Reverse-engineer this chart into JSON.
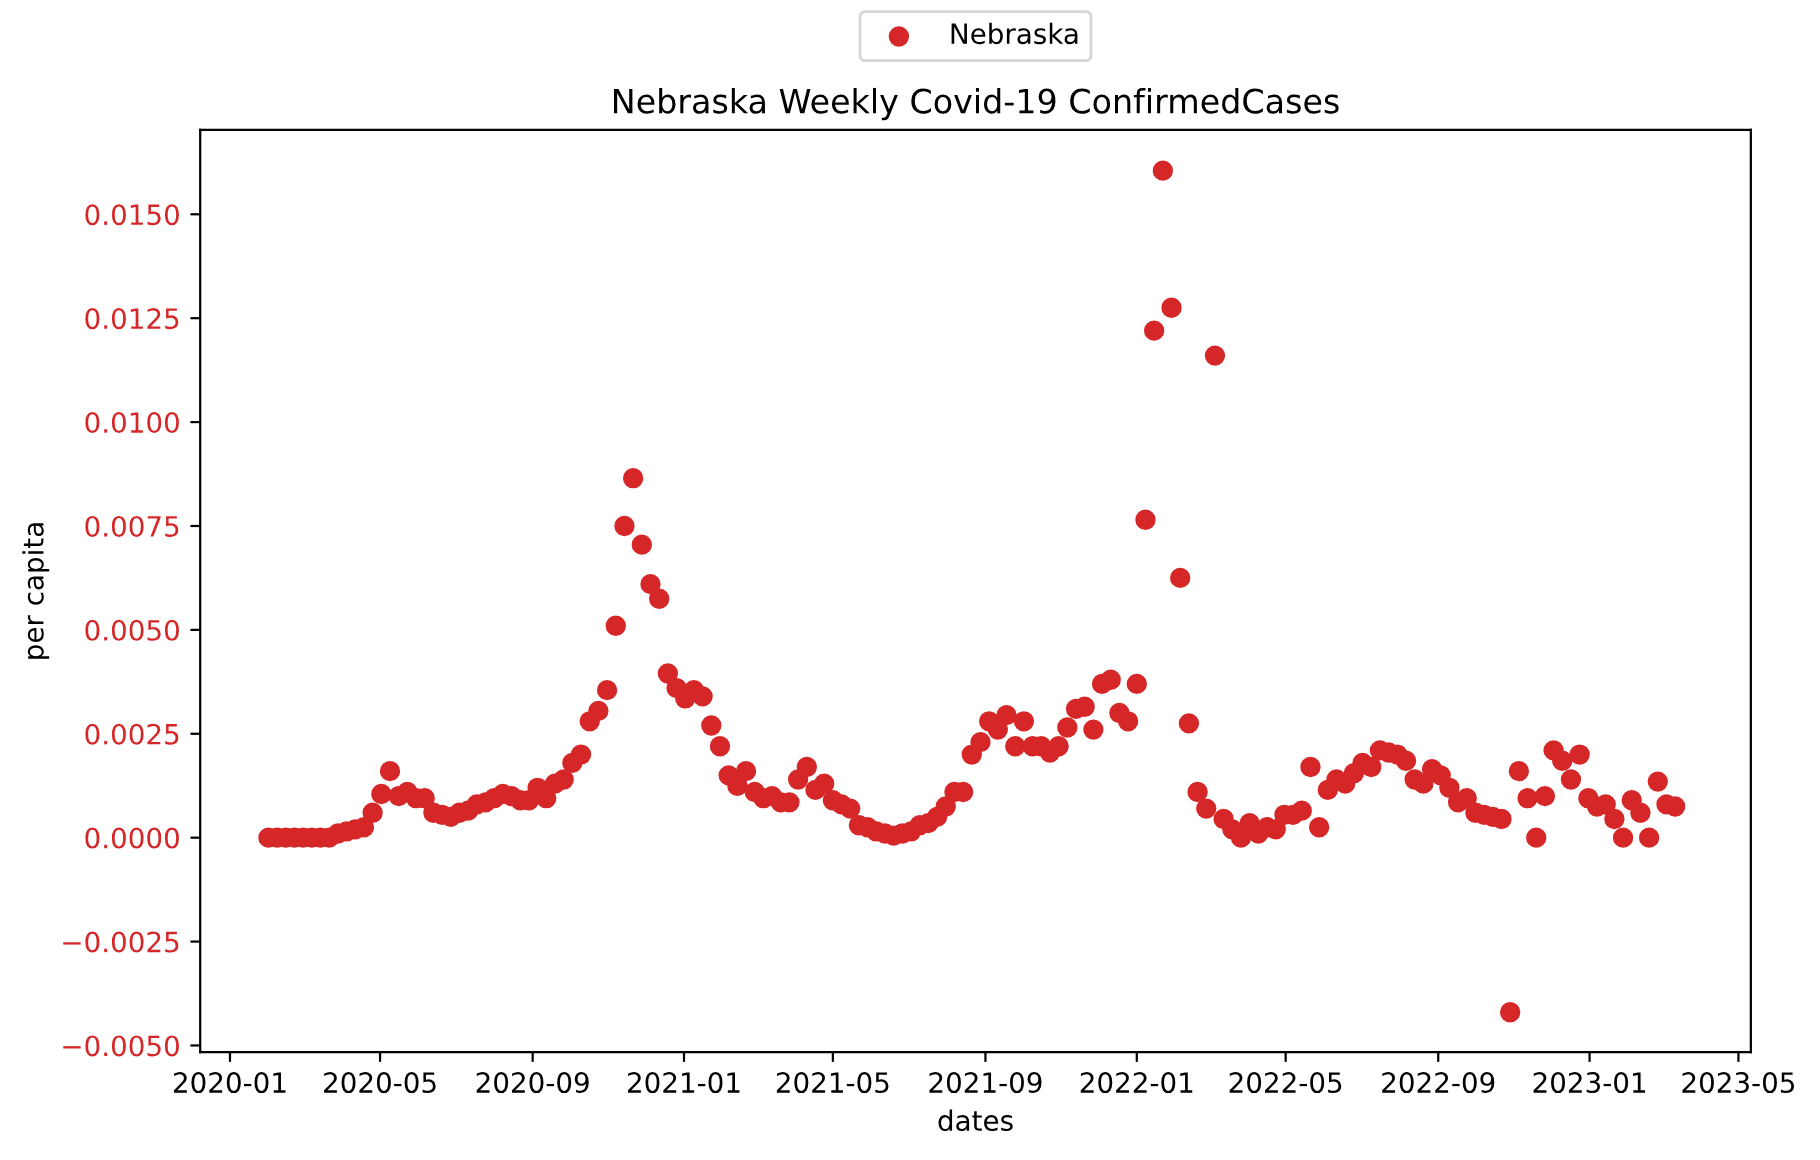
{
  "chart_data": {
    "type": "scatter",
    "title": "Nebraska Weekly Covid-19 ConfirmedCases",
    "xlabel": "dates",
    "ylabel": "per capita",
    "x": [
      "2020-02-01",
      "2020-02-08",
      "2020-02-15",
      "2020-02-22",
      "2020-02-29",
      "2020-03-07",
      "2020-03-14",
      "2020-03-21",
      "2020-03-28",
      "2020-04-04",
      "2020-04-11",
      "2020-04-18",
      "2020-04-25",
      "2020-05-02",
      "2020-05-09",
      "2020-05-16",
      "2020-05-23",
      "2020-05-30",
      "2020-06-06",
      "2020-06-13",
      "2020-06-20",
      "2020-06-27",
      "2020-07-04",
      "2020-07-11",
      "2020-07-18",
      "2020-07-25",
      "2020-08-01",
      "2020-08-08",
      "2020-08-15",
      "2020-08-22",
      "2020-08-29",
      "2020-09-05",
      "2020-09-12",
      "2020-09-19",
      "2020-09-26",
      "2020-10-03",
      "2020-10-10",
      "2020-10-17",
      "2020-10-24",
      "2020-10-31",
      "2020-11-07",
      "2020-11-14",
      "2020-11-21",
      "2020-11-28",
      "2020-12-05",
      "2020-12-12",
      "2020-12-19",
      "2020-12-26",
      "2021-01-02",
      "2021-01-09",
      "2021-01-16",
      "2021-01-23",
      "2021-01-30",
      "2021-02-06",
      "2021-02-13",
      "2021-02-20",
      "2021-02-27",
      "2021-03-06",
      "2021-03-13",
      "2021-03-20",
      "2021-03-27",
      "2021-04-03",
      "2021-04-10",
      "2021-04-17",
      "2021-04-24",
      "2021-05-01",
      "2021-05-08",
      "2021-05-15",
      "2021-05-22",
      "2021-05-29",
      "2021-06-05",
      "2021-06-12",
      "2021-06-19",
      "2021-06-26",
      "2021-07-03",
      "2021-07-10",
      "2021-07-17",
      "2021-07-24",
      "2021-07-31",
      "2021-08-07",
      "2021-08-14",
      "2021-08-21",
      "2021-08-28",
      "2021-09-04",
      "2021-09-11",
      "2021-09-18",
      "2021-09-25",
      "2021-10-02",
      "2021-10-09",
      "2021-10-16",
      "2021-10-23",
      "2021-10-30",
      "2021-11-06",
      "2021-11-13",
      "2021-11-20",
      "2021-11-27",
      "2021-12-04",
      "2021-12-11",
      "2021-12-18",
      "2021-12-25",
      "2022-01-01",
      "2022-01-08",
      "2022-01-15",
      "2022-01-22",
      "2022-01-29",
      "2022-02-05",
      "2022-02-12",
      "2022-02-19",
      "2022-02-26",
      "2022-03-05",
      "2022-03-12",
      "2022-03-19",
      "2022-03-26",
      "2022-04-02",
      "2022-04-09",
      "2022-04-16",
      "2022-04-23",
      "2022-04-30",
      "2022-05-07",
      "2022-05-14",
      "2022-05-21",
      "2022-05-28",
      "2022-06-04",
      "2022-06-11",
      "2022-06-18",
      "2022-06-25",
      "2022-07-02",
      "2022-07-09",
      "2022-07-16",
      "2022-07-23",
      "2022-07-30",
      "2022-08-06",
      "2022-08-13",
      "2022-08-20",
      "2022-08-27",
      "2022-09-03",
      "2022-09-10",
      "2022-09-17",
      "2022-09-24",
      "2022-10-01",
      "2022-10-08",
      "2022-10-15",
      "2022-10-22",
      "2022-10-29",
      "2022-11-05",
      "2022-11-12",
      "2022-11-19",
      "2022-11-26",
      "2022-12-03",
      "2022-12-10",
      "2022-12-17",
      "2022-12-24",
      "2022-12-31",
      "2023-01-07",
      "2023-01-14",
      "2023-01-21",
      "2023-01-28",
      "2023-02-04",
      "2023-02-11",
      "2023-02-18",
      "2023-02-25",
      "2023-03-04",
      "2023-03-11"
    ],
    "series": [
      {
        "name": "Nebraska",
        "color": "#d62728",
        "values": [
          0,
          0,
          0,
          0,
          0,
          0,
          0,
          0,
          0.0001,
          0.00015,
          0.0002,
          0.00025,
          0.0006,
          0.00105,
          0.0016,
          0.001,
          0.0011,
          0.00095,
          0.00095,
          0.0006,
          0.00055,
          0.0005,
          0.0006,
          0.00065,
          0.0008,
          0.00085,
          0.00095,
          0.00105,
          0.001,
          0.0009,
          0.0009,
          0.0012,
          0.00095,
          0.0013,
          0.0014,
          0.0018,
          0.002,
          0.0028,
          0.00305,
          0.00355,
          0.0051,
          0.0075,
          0.00865,
          0.00705,
          0.0061,
          0.00575,
          0.00395,
          0.0036,
          0.00335,
          0.00355,
          0.0034,
          0.0027,
          0.0022,
          0.0015,
          0.00125,
          0.0016,
          0.0011,
          0.00095,
          0.001,
          0.00085,
          0.00085,
          0.0014,
          0.0017,
          0.00115,
          0.0013,
          0.0009,
          0.0008,
          0.0007,
          0.0003,
          0.00025,
          0.00015,
          0.0001,
          5e-05,
          0.0001,
          0.00015,
          0.0003,
          0.00035,
          0.0005,
          0.00075,
          0.0011,
          0.0011,
          0.002,
          0.0023,
          0.0028,
          0.0026,
          0.00295,
          0.0022,
          0.0028,
          0.0022,
          0.0022,
          0.00205,
          0.0022,
          0.00265,
          0.0031,
          0.00315,
          0.0026,
          0.0037,
          0.0038,
          0.003,
          0.0028,
          0.0037,
          0.00765,
          0.0122,
          0.01605,
          0.01275,
          0.00625,
          0.00275,
          0.0011,
          0.0007,
          0.0116,
          0.00045,
          0.0002,
          0,
          0.00035,
          0.0001,
          0.00025,
          0.0002,
          0.00055,
          0.00055,
          0.00065,
          0.0017,
          0.00025,
          0.00115,
          0.0014,
          0.0013,
          0.00155,
          0.0018,
          0.0017,
          0.0021,
          0.00205,
          0.002,
          0.00185,
          0.0014,
          0.0013,
          0.00165,
          0.0015,
          0.0012,
          0.00085,
          0.00095,
          0.0006,
          0.00055,
          0.0005,
          0.00045,
          -0.0042,
          0.0016,
          0.00095,
          0,
          0.001,
          0.0021,
          0.00185,
          0.0014,
          0.002,
          0.00095,
          0.00075,
          0.0008,
          0.00045,
          0,
          0.0009,
          0.0006,
          0,
          0.00135,
          0.0008,
          0.00075
        ]
      }
    ],
    "xlim": [
      "2019-12-08",
      "2023-05-11"
    ],
    "xticks": [
      {
        "value": "2020-01-01",
        "label": "2020-01"
      },
      {
        "value": "2020-05-01",
        "label": "2020-05"
      },
      {
        "value": "2020-09-01",
        "label": "2020-09"
      },
      {
        "value": "2021-01-01",
        "label": "2021-01"
      },
      {
        "value": "2021-05-01",
        "label": "2021-05"
      },
      {
        "value": "2021-09-01",
        "label": "2021-09"
      },
      {
        "value": "2022-01-01",
        "label": "2022-01"
      },
      {
        "value": "2022-05-01",
        "label": "2022-05"
      },
      {
        "value": "2022-09-01",
        "label": "2022-09"
      },
      {
        "value": "2023-01-01",
        "label": "2023-01"
      },
      {
        "value": "2023-05-01",
        "label": "2023-05"
      }
    ],
    "ylim": [
      -0.00516,
      0.01703
    ],
    "yticks": [
      {
        "value": -0.005,
        "label": "−0.0050"
      },
      {
        "value": -0.0025,
        "label": "−0.0025"
      },
      {
        "value": 0,
        "label": "0.0000"
      },
      {
        "value": 0.0025,
        "label": "0.0025"
      },
      {
        "value": 0.005,
        "label": "0.0050"
      },
      {
        "value": 0.0075,
        "label": "0.0075"
      },
      {
        "value": 0.01,
        "label": "0.0100"
      },
      {
        "value": 0.0125,
        "label": "0.0125"
      },
      {
        "value": 0.015,
        "label": "0.0150"
      }
    ],
    "marker": "circle",
    "grid": false,
    "legend": "top"
  }
}
